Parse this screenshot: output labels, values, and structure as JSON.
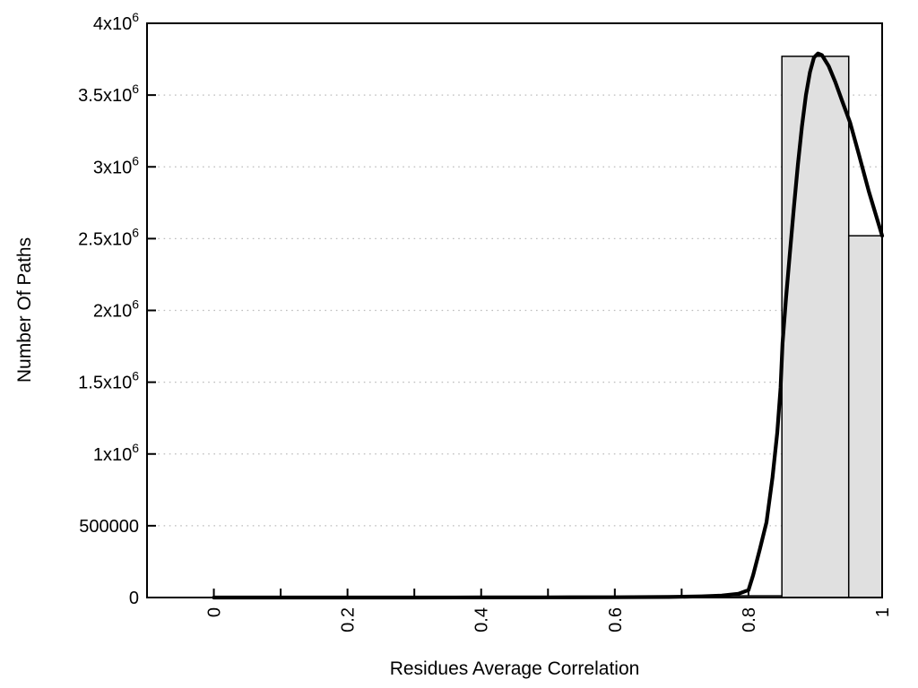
{
  "chart": {
    "y_title": "Number Of Paths",
    "x_title": "Residues Average Correlation"
  },
  "chart_data": {
    "type": "bar",
    "subtype": "histogram-with-fit-curve",
    "title": "",
    "xlabel": "Residues Average Correlation",
    "ylabel": "Number Of Paths",
    "xlim": [
      -0.1,
      1.0
    ],
    "ylim": [
      0,
      4000000
    ],
    "grid": "horizontal-dotted-at-y-ticks",
    "legend": "none",
    "colors": {
      "bar_fill": "#e0e0e0",
      "bar_edge": "#000000",
      "curve": "#000000",
      "gridline": "#bcbcbc",
      "frame": "#000000"
    },
    "yticks": [
      {
        "v": 0,
        "label": "0"
      },
      {
        "v": 500000,
        "label": "500000"
      },
      {
        "v": 1000000,
        "label": "1x10^6"
      },
      {
        "v": 1500000,
        "label": "1.5x10^6"
      },
      {
        "v": 2000000,
        "label": "2x10^6"
      },
      {
        "v": 2500000,
        "label": "2.5x10^6"
      },
      {
        "v": 3000000,
        "label": "3x10^6"
      },
      {
        "v": 3500000,
        "label": "3.5x10^6"
      },
      {
        "v": 4000000,
        "label": "4x10^6"
      }
    ],
    "xticks": {
      "minor_step": 0.1,
      "minor_range": [
        0,
        1.0
      ],
      "labeled": [
        {
          "v": 0,
          "label": "0"
        },
        {
          "v": 0.2,
          "label": "0.2"
        },
        {
          "v": 0.4,
          "label": "0.4"
        },
        {
          "v": 0.6,
          "label": "0.6"
        },
        {
          "v": 0.8,
          "label": "0.8"
        },
        {
          "v": 1.0,
          "label": "1"
        }
      ]
    },
    "bars": [
      {
        "x0": 0.75,
        "x1": 0.85,
        "count": 12000
      },
      {
        "x0": 0.85,
        "x1": 0.95,
        "count": 3770000
      },
      {
        "x0": 0.95,
        "x1": 1.05,
        "count": 2520000,
        "clipped_at_x": 1.0
      }
    ],
    "curve_points": [
      [
        0.0,
        0
      ],
      [
        0.1,
        0
      ],
      [
        0.2,
        0
      ],
      [
        0.3,
        0
      ],
      [
        0.4,
        500
      ],
      [
        0.5,
        1000
      ],
      [
        0.6,
        2000
      ],
      [
        0.68,
        4000
      ],
      [
        0.73,
        8000
      ],
      [
        0.76,
        14000
      ],
      [
        0.785,
        26000
      ],
      [
        0.8,
        52000
      ],
      [
        0.807,
        156000
      ],
      [
        0.817,
        337000
      ],
      [
        0.827,
        524000
      ],
      [
        0.836,
        836000
      ],
      [
        0.843,
        1148000
      ],
      [
        0.848,
        1460000
      ],
      [
        0.851,
        1772000
      ],
      [
        0.856,
        2080000
      ],
      [
        0.862,
        2400000
      ],
      [
        0.868,
        2720000
      ],
      [
        0.874,
        3020000
      ],
      [
        0.88,
        3280000
      ],
      [
        0.886,
        3500000
      ],
      [
        0.892,
        3660000
      ],
      [
        0.898,
        3762000
      ],
      [
        0.904,
        3790000
      ],
      [
        0.91,
        3778000
      ],
      [
        0.92,
        3702000
      ],
      [
        0.93,
        3590000
      ],
      [
        0.94,
        3460000
      ],
      [
        0.952,
        3310000
      ],
      [
        0.965,
        3090000
      ],
      [
        0.98,
        2830000
      ],
      [
        1.0,
        2520000
      ]
    ]
  }
}
